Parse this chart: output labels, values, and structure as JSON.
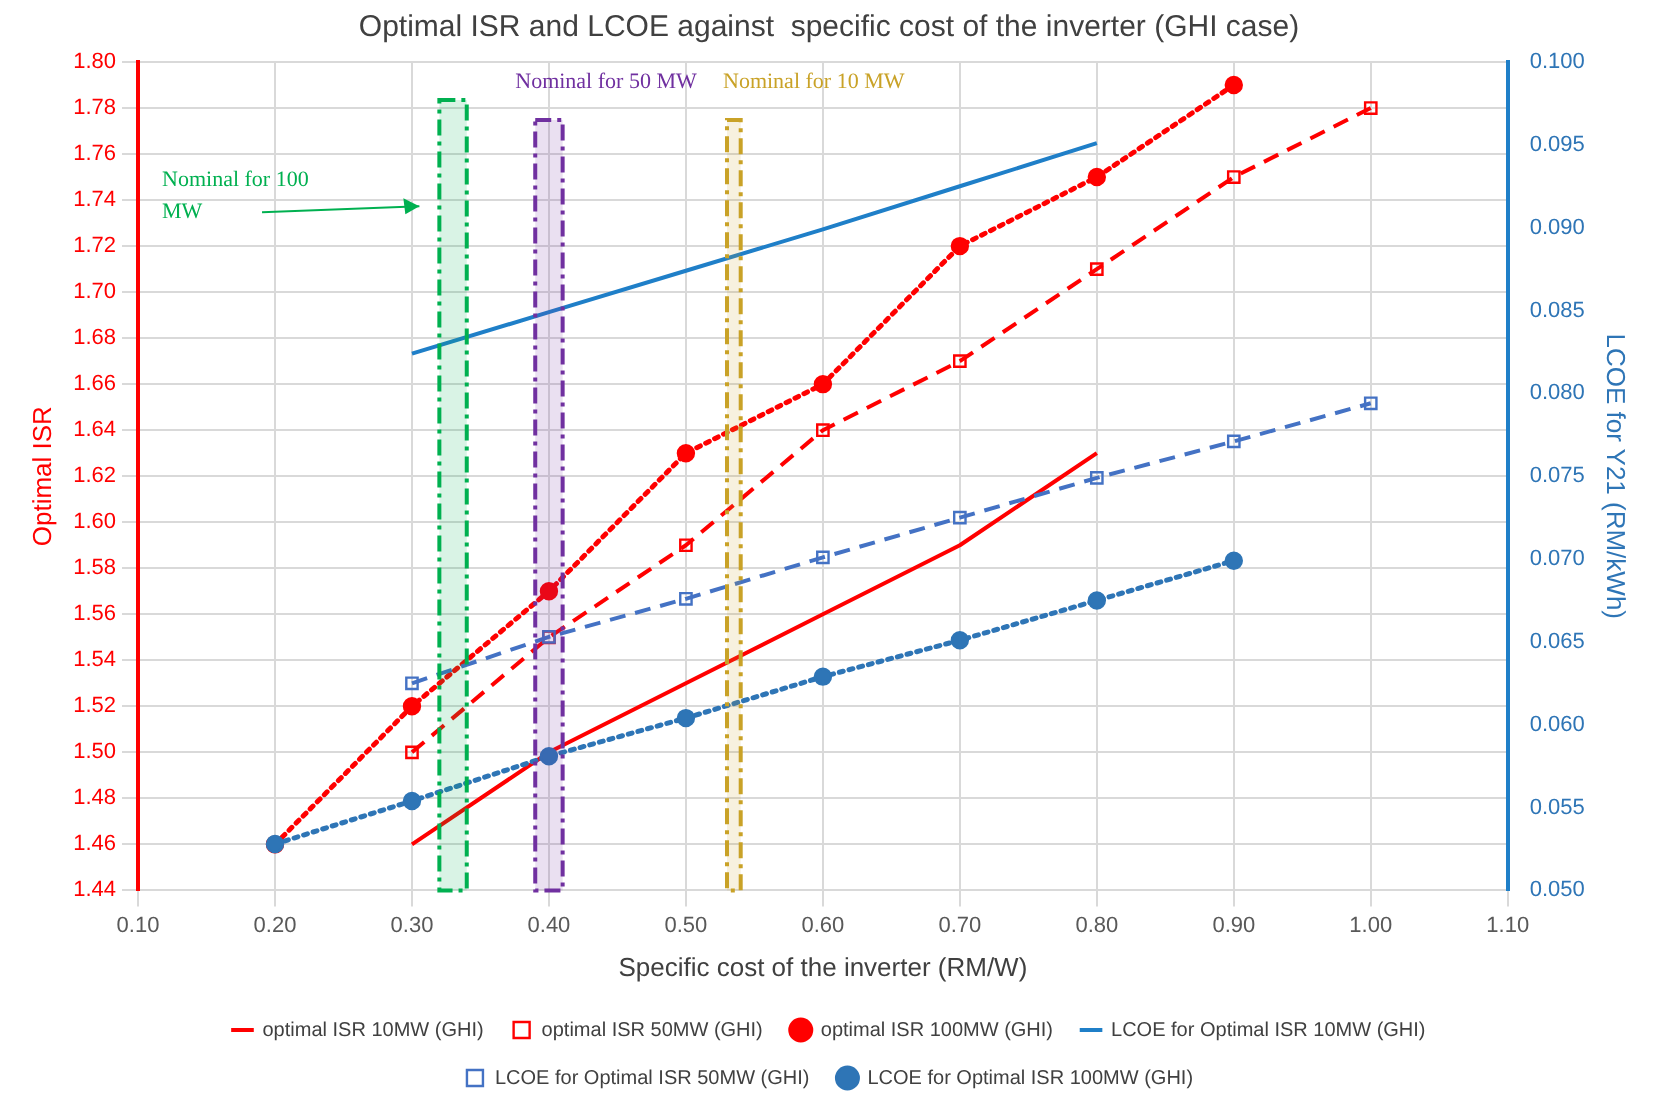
{
  "chart_data": {
    "type": "line",
    "title": "Optimal ISR and LCOE against  specific cost of the inverter (GHI case)",
    "xlabel": "Specific cost of the inverter (RM/W)",
    "ylabel": "Optimal ISR",
    "y2label": "LCOE for Y21 (RM/kWh)",
    "xlim": [
      0.1,
      1.1
    ],
    "xticks": [
      {
        "value": 0.1,
        "label": "0.10"
      },
      {
        "value": 0.2,
        "label": "0.20"
      },
      {
        "value": 0.3,
        "label": "0.30"
      },
      {
        "value": 0.4,
        "label": "0.40"
      },
      {
        "value": 0.5,
        "label": "0.50"
      },
      {
        "value": 0.6,
        "label": "0.60"
      },
      {
        "value": 0.7,
        "label": "0.70"
      },
      {
        "value": 0.8,
        "label": "0.80"
      },
      {
        "value": 0.9,
        "label": "0.90"
      },
      {
        "value": 1.0,
        "label": "1.00"
      },
      {
        "value": 1.1,
        "label": "1.10"
      }
    ],
    "ylim": [
      1.44,
      1.8
    ],
    "yticks": [
      {
        "value": 1.44,
        "label": "1.44"
      },
      {
        "value": 1.46,
        "label": "1.46"
      },
      {
        "value": 1.48,
        "label": "1.48"
      },
      {
        "value": 1.5,
        "label": "1.50"
      },
      {
        "value": 1.52,
        "label": "1.52"
      },
      {
        "value": 1.54,
        "label": "1.54"
      },
      {
        "value": 1.56,
        "label": "1.56"
      },
      {
        "value": 1.58,
        "label": "1.58"
      },
      {
        "value": 1.6,
        "label": "1.60"
      },
      {
        "value": 1.62,
        "label": "1.62"
      },
      {
        "value": 1.64,
        "label": "1.64"
      },
      {
        "value": 1.66,
        "label": "1.66"
      },
      {
        "value": 1.68,
        "label": "1.68"
      },
      {
        "value": 1.7,
        "label": "1.70"
      },
      {
        "value": 1.72,
        "label": "1.72"
      },
      {
        "value": 1.74,
        "label": "1.74"
      },
      {
        "value": 1.76,
        "label": "1.76"
      },
      {
        "value": 1.78,
        "label": "1.78"
      },
      {
        "value": 1.8,
        "label": "1.80"
      }
    ],
    "y2lim": [
      0.05,
      0.1
    ],
    "y2ticks": [
      {
        "value": 0.05,
        "label": "0.050"
      },
      {
        "value": 0.055,
        "label": "0.055"
      },
      {
        "value": 0.06,
        "label": "0.060"
      },
      {
        "value": 0.065,
        "label": "0.065"
      },
      {
        "value": 0.07,
        "label": "0.070"
      },
      {
        "value": 0.075,
        "label": "0.075"
      },
      {
        "value": 0.08,
        "label": "0.080"
      },
      {
        "value": 0.085,
        "label": "0.085"
      },
      {
        "value": 0.09,
        "label": "0.090"
      },
      {
        "value": 0.095,
        "label": "0.095"
      },
      {
        "value": 0.1,
        "label": "0.100"
      }
    ],
    "grid": true,
    "legend": "bottom",
    "series": [
      {
        "name": "optimal ISR 10MW (GHI)",
        "color": "#ff0000",
        "line_style": "solid",
        "marker": "none",
        "x": [
          0.3,
          0.4,
          0.5,
          0.6,
          0.7,
          0.8
        ],
        "values": [
          1.46,
          1.5,
          1.53,
          1.56,
          1.59,
          1.63
        ]
      },
      {
        "name": "optimal ISR 50MW (GHI)",
        "color": "#ff0000",
        "line_style": "dashed",
        "marker": "square",
        "x": [
          0.3,
          0.4,
          0.5,
          0.6,
          0.7,
          0.8,
          0.9,
          1.0
        ],
        "values": [
          1.5,
          1.55,
          1.59,
          1.64,
          1.67,
          1.71,
          1.75,
          1.78
        ]
      },
      {
        "name": "optimal ISR 100MW (GHI)",
        "color": "#ff0000",
        "line_style": "dotted",
        "marker": "circle",
        "x": [
          0.2,
          0.3,
          0.4,
          0.5,
          0.6,
          0.7,
          0.8,
          0.9
        ],
        "values": [
          1.46,
          1.52,
          1.57,
          1.63,
          1.66,
          1.72,
          1.75,
          1.79
        ]
      },
      {
        "name": "LCOE for Optimal ISR 10MW (GHI)",
        "color": "#1f7fc8",
        "line_style": "solid",
        "marker": "none",
        "axis": "y2",
        "x": [
          0.3,
          0.4,
          0.5,
          0.6,
          0.7,
          0.8
        ],
        "values": [
          0.0824,
          0.0849,
          0.0874,
          0.0899,
          0.0925,
          0.0951
        ]
      },
      {
        "name": "LCOE for Optimal ISR 50MW (GHI)",
        "color": "#4472c4",
        "line_style": "dashed",
        "marker": "square",
        "axis": "y2",
        "x": [
          0.3,
          0.4,
          0.5,
          0.6,
          0.7,
          0.8,
          0.9,
          1.0
        ],
        "values": [
          0.0625,
          0.0653,
          0.0676,
          0.0701,
          0.0725,
          0.0749,
          0.0771,
          0.0794
        ]
      },
      {
        "name": "LCOE for Optimal ISR 100MW (GHI)",
        "color": "#2e75b6",
        "line_style": "dotted",
        "marker": "circle",
        "axis": "y2",
        "x": [
          0.2,
          0.3,
          0.4,
          0.5,
          0.6,
          0.7,
          0.8,
          0.9
        ],
        "values": [
          0.0528,
          0.0554,
          0.0581,
          0.0604,
          0.0629,
          0.0651,
          0.0675,
          0.0699
        ]
      }
    ],
    "bands": [
      {
        "axis": "x",
        "from": 0.32,
        "to": 0.34,
        "label": "Nominal for 100 MW",
        "color": "#00b050"
      },
      {
        "axis": "x",
        "from": 0.39,
        "to": 0.41,
        "label": "Nominal for 50 MW",
        "color": "#7030a0"
      },
      {
        "axis": "x",
        "from": 0.53,
        "to": 0.54,
        "label": "Nominal for 10 MW",
        "color": "#c9a227"
      }
    ]
  }
}
